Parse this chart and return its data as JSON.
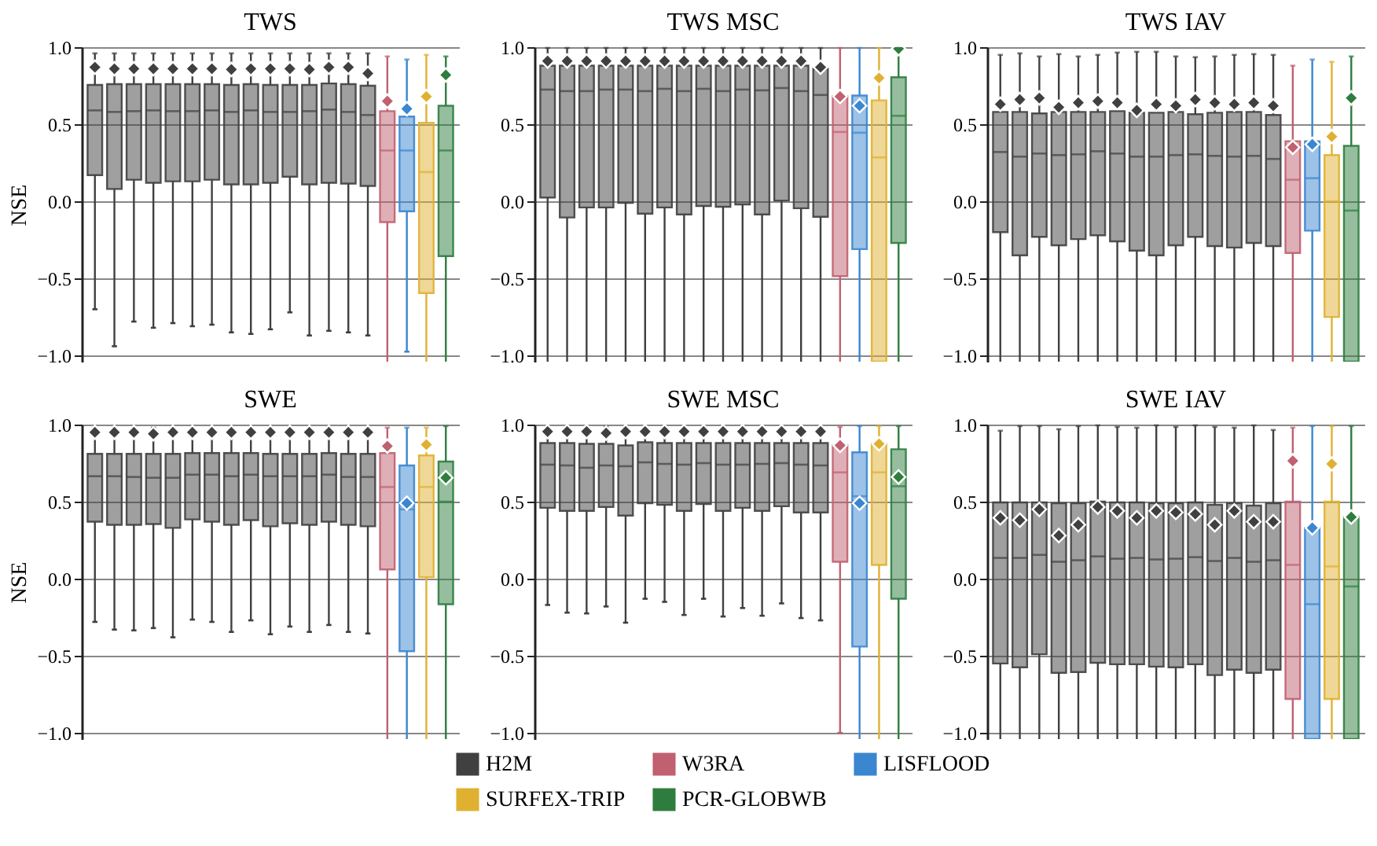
{
  "chart_data": [
    {
      "type": "box",
      "title": "TWS",
      "ylabel": "NSE",
      "categories": [
        null,
        null,
        null,
        null,
        null,
        null,
        null,
        null,
        null,
        null,
        null,
        null,
        null,
        null,
        null,
        null,
        null,
        null,
        null
      ],
      "ylim": [
        -1.04,
        1.0
      ],
      "yticks": [
        {
          "value": -1,
          "label": "−1.0"
        },
        {
          "value": -0.5,
          "label": "−0.5"
        },
        {
          "value": 0,
          "label": "0.0"
        },
        {
          "value": 0.5,
          "label": "0.5"
        },
        {
          "value": 1,
          "label": "1.0"
        }
      ],
      "grid": "y",
      "tick_labels": "y",
      "series": [
        {
          "color": "#404040",
          "boxes": [
            {
              "low": -0.7,
              "q1": 0.17,
              "median": 0.59,
              "q3": 0.755,
              "high": 0.96,
              "mean": 0.87
            },
            {
              "low": -0.94,
              "q1": 0.08,
              "median": 0.58,
              "q3": 0.76,
              "high": 0.96,
              "mean": 0.86
            },
            {
              "low": -0.78,
              "q1": 0.14,
              "median": 0.585,
              "q3": 0.76,
              "high": 0.96,
              "mean": 0.86
            },
            {
              "low": -0.82,
              "q1": 0.12,
              "median": 0.59,
              "q3": 0.76,
              "high": 0.96,
              "mean": 0.86
            },
            {
              "low": -0.79,
              "q1": 0.13,
              "median": 0.585,
              "q3": 0.76,
              "high": 0.96,
              "mean": 0.86
            },
            {
              "low": -0.81,
              "q1": 0.13,
              "median": 0.585,
              "q3": 0.76,
              "high": 0.96,
              "mean": 0.86
            },
            {
              "low": -0.8,
              "q1": 0.14,
              "median": 0.59,
              "q3": 0.76,
              "high": 0.96,
              "mean": 0.86
            },
            {
              "low": -0.85,
              "q1": 0.11,
              "median": 0.58,
              "q3": 0.755,
              "high": 0.96,
              "mean": 0.855
            },
            {
              "low": -0.86,
              "q1": 0.11,
              "median": 0.59,
              "q3": 0.76,
              "high": 0.96,
              "mean": 0.86
            },
            {
              "low": -0.83,
              "q1": 0.12,
              "median": 0.58,
              "q3": 0.755,
              "high": 0.96,
              "mean": 0.86
            },
            {
              "low": -0.72,
              "q1": 0.16,
              "median": 0.58,
              "q3": 0.755,
              "high": 0.96,
              "mean": 0.86
            },
            {
              "low": -0.87,
              "q1": 0.11,
              "median": 0.585,
              "q3": 0.755,
              "high": 0.96,
              "mean": 0.855
            },
            {
              "low": -0.84,
              "q1": 0.12,
              "median": 0.595,
              "q3": 0.765,
              "high": 0.96,
              "mean": 0.87
            },
            {
              "low": -0.85,
              "q1": 0.115,
              "median": 0.58,
              "q3": 0.76,
              "high": 0.96,
              "mean": 0.87
            },
            {
              "low": -0.87,
              "q1": 0.1,
              "median": 0.56,
              "q3": 0.75,
              "high": 0.96,
              "mean": 0.83
            },
            null,
            null,
            null,
            null
          ]
        },
        {
          "color": "#c06070",
          "boxes": [
            null,
            null,
            null,
            null,
            null,
            null,
            null,
            null,
            null,
            null,
            null,
            null,
            null,
            null,
            null,
            {
              "low": -1.04,
              "q1": -0.135,
              "median": 0.33,
              "q3": 0.585,
              "high": 0.94,
              "mean": 0.65
            },
            null,
            null,
            null
          ]
        },
        {
          "color": "#3a86d0",
          "boxes": [
            null,
            null,
            null,
            null,
            null,
            null,
            null,
            null,
            null,
            null,
            null,
            null,
            null,
            null,
            null,
            null,
            {
              "low": -0.975,
              "q1": -0.065,
              "median": 0.33,
              "q3": 0.55,
              "high": 0.92,
              "mean": 0.6
            },
            null,
            null
          ]
        },
        {
          "color": "#e0b030",
          "boxes": [
            null,
            null,
            null,
            null,
            null,
            null,
            null,
            null,
            null,
            null,
            null,
            null,
            null,
            null,
            null,
            null,
            null,
            {
              "low": -1.04,
              "q1": -0.595,
              "median": 0.19,
              "q3": 0.51,
              "high": 0.95,
              "mean": 0.68
            },
            null
          ]
        },
        {
          "color": "#2e7d3e",
          "boxes": [
            null,
            null,
            null,
            null,
            null,
            null,
            null,
            null,
            null,
            null,
            null,
            null,
            null,
            null,
            null,
            null,
            null,
            null,
            {
              "low": -1.04,
              "q1": -0.355,
              "median": 0.33,
              "q3": 0.62,
              "high": 0.94,
              "mean": 0.82
            }
          ]
        }
      ]
    },
    {
      "type": "box",
      "title": "TWS MSC",
      "categories": [
        null,
        null,
        null,
        null,
        null,
        null,
        null,
        null,
        null,
        null,
        null,
        null,
        null,
        null,
        null,
        null,
        null,
        null,
        null
      ],
      "ylim": [
        -1.04,
        1.0
      ],
      "yticks": [
        {
          "value": -1,
          "label": "−1.0"
        },
        {
          "value": -0.5,
          "label": "−0.5"
        },
        {
          "value": 0,
          "label": "0.0"
        },
        {
          "value": 0.5,
          "label": "0.5"
        },
        {
          "value": 1,
          "label": "1.0"
        }
      ],
      "grid": "y",
      "series": [
        {
          "color": "#404040",
          "boxes": [
            {
              "low": -1.04,
              "q1": 0.025,
              "median": 0.725,
              "q3": 0.88,
              "high": 0.995,
              "mean": 0.91
            },
            {
              "low": -1.04,
              "q1": -0.105,
              "median": 0.715,
              "q3": 0.88,
              "high": 0.995,
              "mean": 0.91
            },
            {
              "low": -1.04,
              "q1": -0.04,
              "median": 0.715,
              "q3": 0.88,
              "high": 0.995,
              "mean": 0.91
            },
            {
              "low": -1.04,
              "q1": -0.04,
              "median": 0.725,
              "q3": 0.88,
              "high": 0.995,
              "mean": 0.91
            },
            {
              "low": -1.04,
              "q1": -0.01,
              "median": 0.725,
              "q3": 0.88,
              "high": 0.995,
              "mean": 0.91
            },
            {
              "low": -1.04,
              "q1": -0.08,
              "median": 0.715,
              "q3": 0.88,
              "high": 0.995,
              "mean": 0.91
            },
            {
              "low": -1.04,
              "q1": -0.04,
              "median": 0.73,
              "q3": 0.88,
              "high": 0.995,
              "mean": 0.91
            },
            {
              "low": -1.04,
              "q1": -0.085,
              "median": 0.715,
              "q3": 0.88,
              "high": 0.995,
              "mean": 0.91
            },
            {
              "low": -1.04,
              "q1": -0.03,
              "median": 0.73,
              "q3": 0.88,
              "high": 0.995,
              "mean": 0.91
            },
            {
              "low": -1.04,
              "q1": -0.035,
              "median": 0.715,
              "q3": 0.88,
              "high": 0.995,
              "mean": 0.91
            },
            {
              "low": -1.04,
              "q1": -0.02,
              "median": 0.725,
              "q3": 0.88,
              "high": 0.995,
              "mean": 0.91
            },
            {
              "low": -1.04,
              "q1": -0.085,
              "median": 0.72,
              "q3": 0.88,
              "high": 0.995,
              "mean": 0.91
            },
            {
              "low": -1.04,
              "q1": 0.005,
              "median": 0.735,
              "q3": 0.88,
              "high": 0.995,
              "mean": 0.91
            },
            {
              "low": -1.04,
              "q1": -0.045,
              "median": 0.715,
              "q3": 0.88,
              "high": 0.995,
              "mean": 0.91
            },
            {
              "low": -1.04,
              "q1": -0.1,
              "median": 0.69,
              "q3": 0.86,
              "high": 0.995,
              "mean": 0.87
            },
            null,
            null,
            null,
            null
          ]
        },
        {
          "color": "#c06070",
          "boxes": [
            null,
            null,
            null,
            null,
            null,
            null,
            null,
            null,
            null,
            null,
            null,
            null,
            null,
            null,
            null,
            {
              "low": -1.04,
              "q1": -0.485,
              "median": 0.45,
              "q3": 0.68,
              "high": 0.995,
              "mean": 0.68
            },
            null,
            null,
            null
          ]
        },
        {
          "color": "#3a86d0",
          "boxes": [
            null,
            null,
            null,
            null,
            null,
            null,
            null,
            null,
            null,
            null,
            null,
            null,
            null,
            null,
            null,
            null,
            {
              "low": -1.04,
              "q1": -0.31,
              "median": 0.445,
              "q3": 0.686,
              "high": 0.995,
              "mean": 0.62
            },
            null,
            null
          ]
        },
        {
          "color": "#e0b030",
          "boxes": [
            null,
            null,
            null,
            null,
            null,
            null,
            null,
            null,
            null,
            null,
            null,
            null,
            null,
            null,
            null,
            null,
            null,
            {
              "low": -1.04,
              "q1": -1.04,
              "median": 0.285,
              "q3": 0.655,
              "high": 0.995,
              "mean": 0.8
            },
            null
          ]
        },
        {
          "color": "#2e7d3e",
          "boxes": [
            null,
            null,
            null,
            null,
            null,
            null,
            null,
            null,
            null,
            null,
            null,
            null,
            null,
            null,
            null,
            null,
            null,
            null,
            {
              "low": -1.04,
              "q1": -0.27,
              "median": 0.555,
              "q3": 0.805,
              "high": 0.995,
              "mean": 0.99
            }
          ]
        }
      ]
    },
    {
      "type": "box",
      "title": "TWS IAV",
      "categories": [
        null,
        null,
        null,
        null,
        null,
        null,
        null,
        null,
        null,
        null,
        null,
        null,
        null,
        null,
        null,
        null,
        null,
        null,
        null
      ],
      "ylim": [
        -1.04,
        1.0
      ],
      "yticks": [
        {
          "value": -1,
          "label": "−1.0"
        },
        {
          "value": -0.5,
          "label": "−0.5"
        },
        {
          "value": 0,
          "label": "0.0"
        },
        {
          "value": 0.5,
          "label": "0.5"
        },
        {
          "value": 1,
          "label": "1.0"
        }
      ],
      "grid": "y",
      "series": [
        {
          "color": "#404040",
          "boxes": [
            {
              "low": -1.04,
              "q1": -0.2,
              "median": 0.32,
              "q3": 0.58,
              "high": 0.95,
              "mean": 0.63
            },
            {
              "low": -1.04,
              "q1": -0.35,
              "median": 0.29,
              "q3": 0.58,
              "high": 0.96,
              "mean": 0.66
            },
            {
              "low": -1.04,
              "q1": -0.23,
              "median": 0.31,
              "q3": 0.57,
              "high": 0.94,
              "mean": 0.67
            },
            {
              "low": -1.04,
              "q1": -0.285,
              "median": 0.3,
              "q3": 0.58,
              "high": 0.955,
              "mean": 0.61
            },
            {
              "low": -1.04,
              "q1": -0.245,
              "median": 0.305,
              "q3": 0.58,
              "high": 0.94,
              "mean": 0.64
            },
            {
              "low": -1.04,
              "q1": -0.22,
              "median": 0.325,
              "q3": 0.58,
              "high": 0.95,
              "mean": 0.65
            },
            {
              "low": -1.04,
              "q1": -0.26,
              "median": 0.31,
              "q3": 0.585,
              "high": 0.965,
              "mean": 0.64
            },
            {
              "low": -1.04,
              "q1": -0.32,
              "median": 0.29,
              "q3": 0.575,
              "high": 0.97,
              "mean": 0.59
            },
            {
              "low": -1.04,
              "q1": -0.35,
              "median": 0.29,
              "q3": 0.575,
              "high": 0.97,
              "mean": 0.63
            },
            {
              "low": -1.04,
              "q1": -0.285,
              "median": 0.3,
              "q3": 0.58,
              "high": 0.94,
              "mean": 0.62
            },
            {
              "low": -1.04,
              "q1": -0.23,
              "median": 0.305,
              "q3": 0.565,
              "high": 0.935,
              "mean": 0.66
            },
            {
              "low": -1.04,
              "q1": -0.29,
              "median": 0.295,
              "q3": 0.575,
              "high": 0.94,
              "mean": 0.64
            },
            {
              "low": -1.04,
              "q1": -0.3,
              "median": 0.29,
              "q3": 0.58,
              "high": 0.95,
              "mean": 0.63
            },
            {
              "low": -1.04,
              "q1": -0.27,
              "median": 0.295,
              "q3": 0.58,
              "high": 0.955,
              "mean": 0.64
            },
            {
              "low": -1.04,
              "q1": -0.29,
              "median": 0.275,
              "q3": 0.56,
              "high": 0.95,
              "mean": 0.62
            },
            null,
            null,
            null,
            null
          ]
        },
        {
          "color": "#c06070",
          "boxes": [
            null,
            null,
            null,
            null,
            null,
            null,
            null,
            null,
            null,
            null,
            null,
            null,
            null,
            null,
            null,
            {
              "low": -1.04,
              "q1": -0.335,
              "median": 0.14,
              "q3": 0.39,
              "high": 0.88,
              "mean": 0.35
            },
            null,
            null,
            null
          ]
        },
        {
          "color": "#3a86d0",
          "boxes": [
            null,
            null,
            null,
            null,
            null,
            null,
            null,
            null,
            null,
            null,
            null,
            null,
            null,
            null,
            null,
            null,
            {
              "low": -1.04,
              "q1": -0.19,
              "median": 0.15,
              "q3": 0.39,
              "high": 0.92,
              "mean": 0.37
            },
            null,
            null
          ]
        },
        {
          "color": "#e0b030",
          "boxes": [
            null,
            null,
            null,
            null,
            null,
            null,
            null,
            null,
            null,
            null,
            null,
            null,
            null,
            null,
            null,
            null,
            null,
            {
              "low": -1.04,
              "q1": -0.75,
              "median": 0.0,
              "q3": 0.3,
              "high": 0.905,
              "mean": 0.42
            },
            null
          ]
        },
        {
          "color": "#2e7d3e",
          "boxes": [
            null,
            null,
            null,
            null,
            null,
            null,
            null,
            null,
            null,
            null,
            null,
            null,
            null,
            null,
            null,
            null,
            null,
            null,
            {
              "low": -1.04,
              "q1": -1.04,
              "median": -0.06,
              "q3": 0.36,
              "high": 0.94,
              "mean": 0.67
            }
          ]
        }
      ]
    },
    {
      "type": "box",
      "title": "SWE",
      "ylabel": "NSE",
      "categories": [
        null,
        null,
        null,
        null,
        null,
        null,
        null,
        null,
        null,
        null,
        null,
        null,
        null,
        null,
        null,
        null,
        null,
        null,
        null
      ],
      "ylim": [
        -1.04,
        1.0
      ],
      "yticks": [
        {
          "value": -1,
          "label": "−1.0"
        },
        {
          "value": -0.5,
          "label": "−0.5"
        },
        {
          "value": 0,
          "label": "0.0"
        },
        {
          "value": 0.5,
          "label": "0.5"
        },
        {
          "value": 1,
          "label": "1.0"
        }
      ],
      "grid": "y",
      "tick_labels": "y",
      "series": [
        {
          "color": "#404040",
          "boxes": [
            {
              "low": -0.28,
              "q1": 0.37,
              "median": 0.665,
              "q3": 0.81,
              "high": 0.98,
              "mean": 0.95
            },
            {
              "low": -0.33,
              "q1": 0.35,
              "median": 0.665,
              "q3": 0.81,
              "high": 0.98,
              "mean": 0.95
            },
            {
              "low": -0.335,
              "q1": 0.35,
              "median": 0.66,
              "q3": 0.81,
              "high": 0.98,
              "mean": 0.95
            },
            {
              "low": -0.32,
              "q1": 0.355,
              "median": 0.655,
              "q3": 0.81,
              "high": 0.98,
              "mean": 0.94
            },
            {
              "low": -0.38,
              "q1": 0.33,
              "median": 0.655,
              "q3": 0.81,
              "high": 0.98,
              "mean": 0.95
            },
            {
              "low": -0.265,
              "q1": 0.385,
              "median": 0.675,
              "q3": 0.815,
              "high": 0.98,
              "mean": 0.95
            },
            {
              "low": -0.28,
              "q1": 0.37,
              "median": 0.675,
              "q3": 0.815,
              "high": 0.98,
              "mean": 0.95
            },
            {
              "low": -0.345,
              "q1": 0.35,
              "median": 0.665,
              "q3": 0.815,
              "high": 0.98,
              "mean": 0.95
            },
            {
              "low": -0.27,
              "q1": 0.38,
              "median": 0.675,
              "q3": 0.815,
              "high": 0.98,
              "mean": 0.95
            },
            {
              "low": -0.36,
              "q1": 0.34,
              "median": 0.665,
              "q3": 0.81,
              "high": 0.98,
              "mean": 0.95
            },
            {
              "low": -0.31,
              "q1": 0.36,
              "median": 0.665,
              "q3": 0.81,
              "high": 0.98,
              "mean": 0.95
            },
            {
              "low": -0.345,
              "q1": 0.35,
              "median": 0.665,
              "q3": 0.81,
              "high": 0.98,
              "mean": 0.95
            },
            {
              "low": -0.3,
              "q1": 0.37,
              "median": 0.675,
              "q3": 0.815,
              "high": 0.98,
              "mean": 0.95
            },
            {
              "low": -0.345,
              "q1": 0.35,
              "median": 0.66,
              "q3": 0.81,
              "high": 0.98,
              "mean": 0.95
            },
            {
              "low": -0.355,
              "q1": 0.34,
              "median": 0.66,
              "q3": 0.81,
              "high": 0.98,
              "mean": 0.95
            },
            null,
            null,
            null,
            null
          ]
        },
        {
          "color": "#c06070",
          "boxes": [
            null,
            null,
            null,
            null,
            null,
            null,
            null,
            null,
            null,
            null,
            null,
            null,
            null,
            null,
            null,
            {
              "low": -1.04,
              "q1": 0.06,
              "median": 0.595,
              "q3": 0.815,
              "high": 0.98,
              "mean": 0.86
            },
            null,
            null,
            null
          ]
        },
        {
          "color": "#3a86d0",
          "boxes": [
            null,
            null,
            null,
            null,
            null,
            null,
            null,
            null,
            null,
            null,
            null,
            null,
            null,
            null,
            null,
            null,
            {
              "low": -1.04,
              "q1": -0.47,
              "median": 0.45,
              "q3": 0.735,
              "high": 0.98,
              "mean": 0.49
            },
            null,
            null
          ]
        },
        {
          "color": "#e0b030",
          "boxes": [
            null,
            null,
            null,
            null,
            null,
            null,
            null,
            null,
            null,
            null,
            null,
            null,
            null,
            null,
            null,
            null,
            null,
            {
              "low": -1.04,
              "q1": 0.01,
              "median": 0.595,
              "q3": 0.8,
              "high": 0.98,
              "mean": 0.87
            },
            null
          ]
        },
        {
          "color": "#2e7d3e",
          "boxes": [
            null,
            null,
            null,
            null,
            null,
            null,
            null,
            null,
            null,
            null,
            null,
            null,
            null,
            null,
            null,
            null,
            null,
            null,
            {
              "low": -1.04,
              "q1": -0.165,
              "median": 0.5,
              "q3": 0.76,
              "high": 0.99,
              "mean": 0.655
            }
          ]
        }
      ]
    },
    {
      "type": "box",
      "title": "SWE MSC",
      "categories": [
        null,
        null,
        null,
        null,
        null,
        null,
        null,
        null,
        null,
        null,
        null,
        null,
        null,
        null,
        null,
        null,
        null,
        null,
        null
      ],
      "ylim": [
        -1.04,
        1.0
      ],
      "yticks": [
        {
          "value": -1,
          "label": "−1.0"
        },
        {
          "value": -0.5,
          "label": "−0.5"
        },
        {
          "value": 0,
          "label": "0.0"
        },
        {
          "value": 0.5,
          "label": "0.5"
        },
        {
          "value": 1,
          "label": "1.0"
        }
      ],
      "grid": "y",
      "legend": "bottom",
      "series": [
        {
          "name": "H2M",
          "color": "#404040",
          "boxes": [
            {
              "low": -0.17,
              "q1": 0.46,
              "median": 0.74,
              "q3": 0.88,
              "high": 0.985,
              "mean": 0.955
            },
            {
              "low": -0.22,
              "q1": 0.44,
              "median": 0.735,
              "q3": 0.88,
              "high": 0.985,
              "mean": 0.955
            },
            {
              "low": -0.225,
              "q1": 0.44,
              "median": 0.72,
              "q3": 0.875,
              "high": 0.985,
              "mean": 0.955
            },
            {
              "low": -0.18,
              "q1": 0.465,
              "median": 0.735,
              "q3": 0.875,
              "high": 0.985,
              "mean": 0.945
            },
            {
              "low": -0.285,
              "q1": 0.41,
              "median": 0.73,
              "q3": 0.865,
              "high": 0.985,
              "mean": 0.955
            },
            {
              "low": -0.13,
              "q1": 0.49,
              "median": 0.755,
              "q3": 0.885,
              "high": 0.985,
              "mean": 0.955
            },
            {
              "low": -0.15,
              "q1": 0.48,
              "median": 0.745,
              "q3": 0.88,
              "high": 0.985,
              "mean": 0.955
            },
            {
              "low": -0.235,
              "q1": 0.44,
              "median": 0.74,
              "q3": 0.88,
              "high": 0.985,
              "mean": 0.955
            },
            {
              "low": -0.13,
              "q1": 0.485,
              "median": 0.75,
              "q3": 0.88,
              "high": 0.985,
              "mean": 0.955
            },
            {
              "low": -0.245,
              "q1": 0.44,
              "median": 0.74,
              "q3": 0.88,
              "high": 0.985,
              "mean": 0.955
            },
            {
              "low": -0.19,
              "q1": 0.46,
              "median": 0.74,
              "q3": 0.88,
              "high": 0.985,
              "mean": 0.955
            },
            {
              "low": -0.24,
              "q1": 0.44,
              "median": 0.745,
              "q3": 0.88,
              "high": 0.985,
              "mean": 0.955
            },
            {
              "low": -0.16,
              "q1": 0.47,
              "median": 0.75,
              "q3": 0.88,
              "high": 0.985,
              "mean": 0.955
            },
            {
              "low": -0.255,
              "q1": 0.43,
              "median": 0.74,
              "q3": 0.88,
              "high": 0.985,
              "mean": 0.955
            },
            {
              "low": -0.27,
              "q1": 0.43,
              "median": 0.735,
              "q3": 0.88,
              "high": 0.985,
              "mean": 0.955
            },
            null,
            null,
            null,
            null
          ]
        },
        {
          "name": "W3RA",
          "color": "#c06070",
          "boxes": [
            null,
            null,
            null,
            null,
            null,
            null,
            null,
            null,
            null,
            null,
            null,
            null,
            null,
            null,
            null,
            {
              "low": -1.0,
              "q1": 0.11,
              "median": 0.69,
              "q3": 0.865,
              "high": 0.985,
              "mean": 0.865
            },
            null,
            null,
            null
          ]
        },
        {
          "name": "LISFLOOD",
          "color": "#3a86d0",
          "boxes": [
            null,
            null,
            null,
            null,
            null,
            null,
            null,
            null,
            null,
            null,
            null,
            null,
            null,
            null,
            null,
            null,
            {
              "low": -1.04,
              "q1": -0.44,
              "median": 0.535,
              "q3": 0.82,
              "high": 0.99,
              "mean": 0.49
            },
            null,
            null
          ]
        },
        {
          "name": "SURFEX-TRIP",
          "color": "#e0b030",
          "boxes": [
            null,
            null,
            null,
            null,
            null,
            null,
            null,
            null,
            null,
            null,
            null,
            null,
            null,
            null,
            null,
            null,
            null,
            {
              "low": -1.04,
              "q1": 0.09,
              "median": 0.69,
              "q3": 0.875,
              "high": 0.99,
              "mean": 0.875
            },
            null
          ]
        },
        {
          "name": "PCR-GLOBWB",
          "color": "#2e7d3e",
          "boxes": [
            null,
            null,
            null,
            null,
            null,
            null,
            null,
            null,
            null,
            null,
            null,
            null,
            null,
            null,
            null,
            null,
            null,
            null,
            {
              "low": -1.04,
              "q1": -0.13,
              "median": 0.6,
              "q3": 0.84,
              "high": 0.99,
              "mean": 0.66
            }
          ]
        }
      ]
    },
    {
      "type": "box",
      "title": "SWE IAV",
      "categories": [
        null,
        null,
        null,
        null,
        null,
        null,
        null,
        null,
        null,
        null,
        null,
        null,
        null,
        null,
        null,
        null,
        null,
        null,
        null
      ],
      "ylim": [
        -1.04,
        1.0
      ],
      "yticks": [
        {
          "value": -1,
          "label": "−1.0"
        },
        {
          "value": -0.5,
          "label": "−0.5"
        },
        {
          "value": 0,
          "label": "0.0"
        },
        {
          "value": 0.5,
          "label": "0.5"
        },
        {
          "value": 1,
          "label": "1.0"
        }
      ],
      "grid": "y",
      "series": [
        {
          "color": "#404040",
          "boxes": [
            {
              "low": -1.04,
              "q1": -0.55,
              "median": 0.135,
              "q3": 0.495,
              "high": 0.96,
              "mean": 0.395
            },
            {
              "low": -1.04,
              "q1": -0.575,
              "median": 0.135,
              "q3": 0.495,
              "high": 0.99,
              "mean": 0.38
            },
            {
              "low": -1.04,
              "q1": -0.49,
              "median": 0.155,
              "q3": 0.495,
              "high": 0.99,
              "mean": 0.45
            },
            {
              "low": -1.04,
              "q1": -0.61,
              "median": 0.11,
              "q3": 0.49,
              "high": 0.97,
              "mean": 0.28
            },
            {
              "low": -1.04,
              "q1": -0.605,
              "median": 0.12,
              "q3": 0.49,
              "high": 0.99,
              "mean": 0.35
            },
            {
              "low": -1.04,
              "q1": -0.545,
              "median": 0.145,
              "q3": 0.5,
              "high": 0.995,
              "mean": 0.465
            },
            {
              "low": -1.04,
              "q1": -0.555,
              "median": 0.13,
              "q3": 0.495,
              "high": 0.985,
              "mean": 0.44
            },
            {
              "low": -1.04,
              "q1": -0.555,
              "median": 0.135,
              "q3": 0.495,
              "high": 0.98,
              "mean": 0.395
            },
            {
              "low": -1.04,
              "q1": -0.57,
              "median": 0.125,
              "q3": 0.49,
              "high": 0.995,
              "mean": 0.44
            },
            {
              "low": -1.04,
              "q1": -0.575,
              "median": 0.13,
              "q3": 0.49,
              "high": 0.985,
              "mean": 0.43
            },
            {
              "low": -1.04,
              "q1": -0.555,
              "median": 0.14,
              "q3": 0.495,
              "high": 0.995,
              "mean": 0.42
            },
            {
              "low": -1.04,
              "q1": -0.625,
              "median": 0.115,
              "q3": 0.48,
              "high": 0.985,
              "mean": 0.35
            },
            {
              "low": -1.04,
              "q1": -0.59,
              "median": 0.135,
              "q3": 0.49,
              "high": 0.98,
              "mean": 0.44
            },
            {
              "low": -1.04,
              "q1": -0.61,
              "median": 0.11,
              "q3": 0.475,
              "high": 0.995,
              "mean": 0.37
            },
            {
              "low": -1.04,
              "q1": -0.59,
              "median": 0.12,
              "q3": 0.49,
              "high": 0.965,
              "mean": 0.37
            },
            null,
            null,
            null,
            null
          ]
        },
        {
          "color": "#c06070",
          "boxes": [
            null,
            null,
            null,
            null,
            null,
            null,
            null,
            null,
            null,
            null,
            null,
            null,
            null,
            null,
            null,
            {
              "low": -1.04,
              "q1": -0.78,
              "median": 0.09,
              "q3": 0.5,
              "high": 0.98,
              "mean": 0.765
            },
            null,
            null,
            null
          ]
        },
        {
          "color": "#3a86d0",
          "boxes": [
            null,
            null,
            null,
            null,
            null,
            null,
            null,
            null,
            null,
            null,
            null,
            null,
            null,
            null,
            null,
            null,
            {
              "low": -1.04,
              "q1": -1.04,
              "median": -0.165,
              "q3": 0.33,
              "high": 0.99,
              "mean": 0.33
            },
            null,
            null
          ]
        },
        {
          "color": "#e0b030",
          "boxes": [
            null,
            null,
            null,
            null,
            null,
            null,
            null,
            null,
            null,
            null,
            null,
            null,
            null,
            null,
            null,
            null,
            null,
            {
              "low": -1.04,
              "q1": -0.78,
              "median": 0.08,
              "q3": 0.5,
              "high": 0.99,
              "mean": 0.745
            },
            null
          ]
        },
        {
          "color": "#2e7d3e",
          "boxes": [
            null,
            null,
            null,
            null,
            null,
            null,
            null,
            null,
            null,
            null,
            null,
            null,
            null,
            null,
            null,
            null,
            null,
            null,
            {
              "low": -1.04,
              "q1": -1.04,
              "median": -0.05,
              "q3": 0.4,
              "high": 0.99,
              "mean": 0.4
            }
          ]
        }
      ]
    }
  ]
}
